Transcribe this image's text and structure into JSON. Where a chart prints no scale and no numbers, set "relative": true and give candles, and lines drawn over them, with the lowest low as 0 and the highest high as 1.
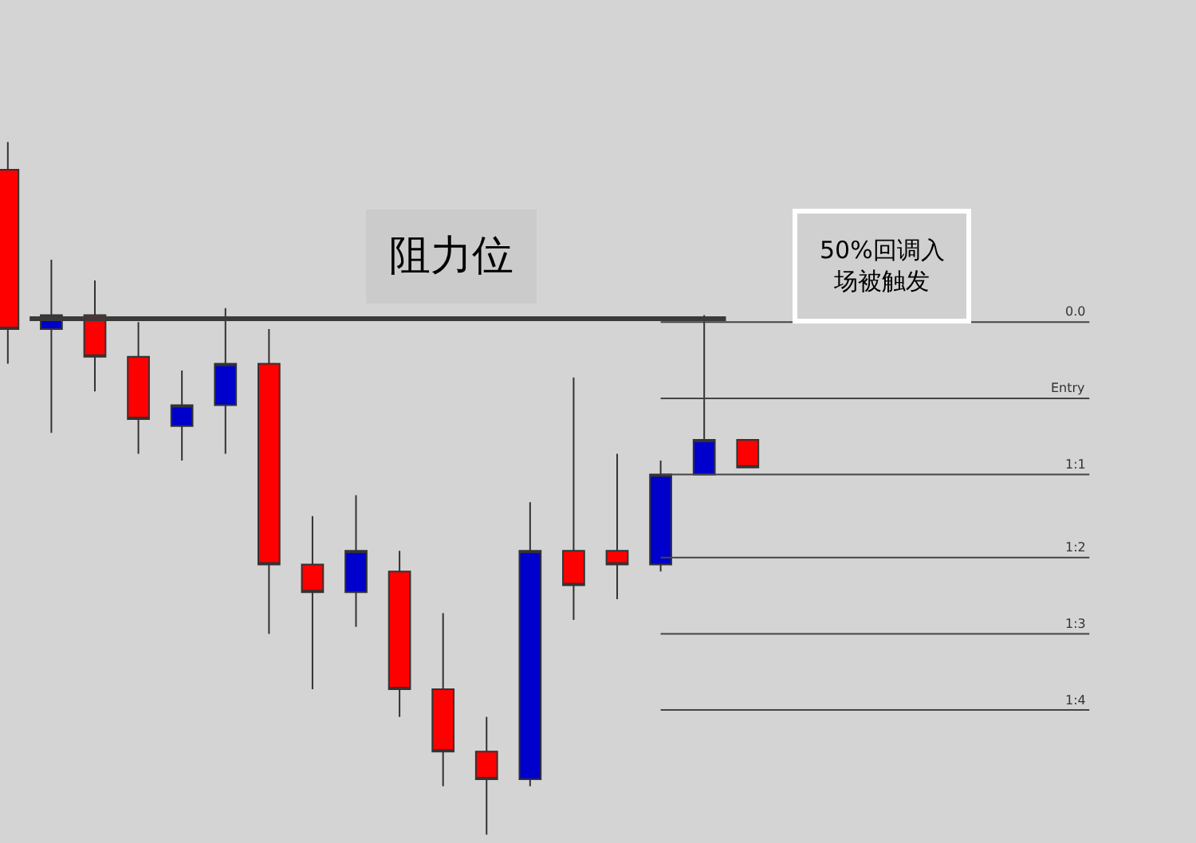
{
  "chart_data": {
    "type": "candlestick",
    "relative": true,
    "categories": [
      null,
      null,
      null,
      null,
      null,
      null,
      null,
      null,
      null,
      null,
      null,
      null,
      null,
      null,
      null,
      null,
      null,
      null
    ],
    "ohlc": [
      [
        0.96,
        1.0,
        0.68,
        0.73
      ],
      [
        0.73,
        0.83,
        0.58,
        0.75
      ],
      [
        0.75,
        0.8,
        0.64,
        0.69
      ],
      [
        0.69,
        0.74,
        0.55,
        0.6
      ],
      [
        0.59,
        0.67,
        0.54,
        0.62
      ],
      [
        0.62,
        0.76,
        0.55,
        0.68
      ],
      [
        0.68,
        0.73,
        0.29,
        0.39
      ],
      [
        0.39,
        0.46,
        0.21,
        0.35
      ],
      [
        0.35,
        0.49,
        0.3,
        0.41
      ],
      [
        0.38,
        0.41,
        0.17,
        0.21
      ],
      [
        0.21,
        0.32,
        0.07,
        0.12
      ],
      [
        0.12,
        0.17,
        0.0,
        0.08
      ],
      [
        0.08,
        0.48,
        0.07,
        0.41
      ],
      [
        0.41,
        0.66,
        0.31,
        0.36
      ],
      [
        0.41,
        0.55,
        0.34,
        0.39
      ],
      [
        0.39,
        0.54,
        0.38,
        0.52
      ],
      [
        0.52,
        0.75,
        0.52,
        0.57
      ],
      [
        0.57,
        0.57,
        0.53,
        0.53
      ]
    ],
    "colors": [
      "#ff0000",
      "#0000cc",
      "#ff0000",
      "#ff0000",
      "#0000cc",
      "#0000cc",
      "#ff0000",
      "#ff0000",
      "#0000cc",
      "#ff0000",
      "#ff0000",
      "#ff0000",
      "#0000cc",
      "#ff0000",
      "#ff0000",
      "#0000cc",
      "#0000cc",
      "#ff0000"
    ],
    "ref_lines": [
      {
        "axis": "y",
        "value": 0.745,
        "label": "阻力位",
        "color": "#3a3a3a"
      },
      {
        "axis": "y",
        "value": 0.74,
        "color": "#444444"
      },
      {
        "axis": "y",
        "value": 0.63,
        "color": "#444444"
      },
      {
        "axis": "y",
        "value": 0.52,
        "color": "#444444"
      },
      {
        "axis": "y",
        "value": 0.4,
        "color": "#444444"
      },
      {
        "axis": "y",
        "value": 0.29,
        "color": "#444444"
      },
      {
        "axis": "y",
        "value": 0.18,
        "color": "#444444"
      }
    ],
    "annotations": [
      "50%回调入场被触发",
      {
        "text": "0.0",
        "y": 0.74
      },
      {
        "text": "Entry",
        "y": 0.63
      },
      {
        "text": "1:1",
        "y": 0.52
      },
      {
        "text": "1:2",
        "y": 0.4
      },
      {
        "text": "1:3",
        "y": 0.29
      },
      {
        "text": "1:4",
        "y": 0.18
      }
    ]
  }
}
